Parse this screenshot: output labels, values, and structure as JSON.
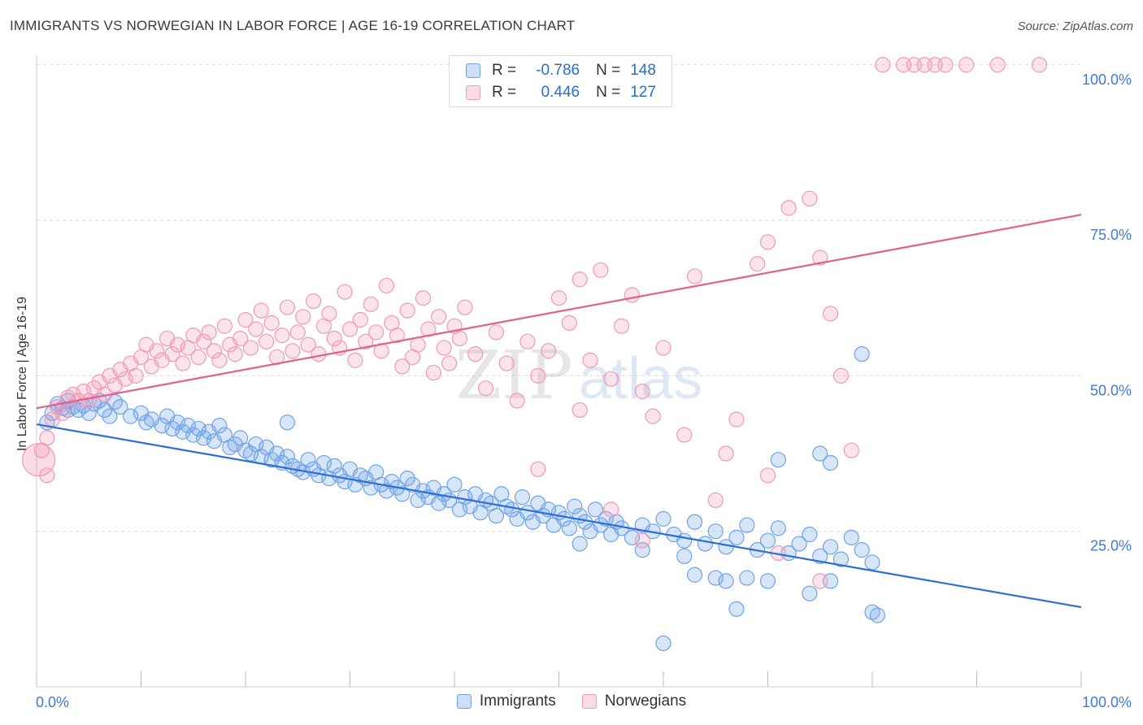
{
  "header": {
    "title": "IMMIGRANTS VS NORWEGIAN IN LABOR FORCE | AGE 16-19 CORRELATION CHART",
    "source": "Source: ZipAtlas.com"
  },
  "legend": {
    "rows": [
      {
        "r_label": "R =",
        "r_value": "-0.786",
        "n_label": "N =",
        "n_value": "148",
        "color": "#6fa3e8"
      },
      {
        "r_label": "R =",
        "r_value": "0.446",
        "n_label": "N =",
        "n_value": "127",
        "color": "#f199b6"
      }
    ]
  },
  "watermark": {
    "zip": "ZIP",
    "atlas": "atlas"
  },
  "chart_data": {
    "type": "scatter",
    "ylabel": "In Labor Force | Age 16-19",
    "xlim": [
      0,
      100
    ],
    "ylim": [
      0,
      100
    ],
    "x_tick_labels": [
      "0.0%",
      "100.0%"
    ],
    "y_tick_labels": [
      "25.0%",
      "50.0%",
      "75.0%",
      "100.0%"
    ],
    "y_ticks": [
      25,
      50,
      75,
      100
    ],
    "grid": true,
    "legend_position": "top-center",
    "series": [
      {
        "name": "Immigrants",
        "color": "#6fa3e8",
        "line_color": "#2b6fd4",
        "trend": {
          "x": [
            0,
            100
          ],
          "y": [
            42.2,
            12.8
          ]
        },
        "points": [
          [
            1.0,
            42.5
          ],
          [
            1.5,
            44.0
          ],
          [
            2.0,
            45.5
          ],
          [
            2.5,
            44.8
          ],
          [
            3.0,
            46.0
          ],
          [
            3.5,
            45.0
          ],
          [
            4.0,
            44.5
          ],
          [
            4.5,
            45.2
          ],
          [
            5.0,
            44.0
          ],
          [
            5.5,
            45.5
          ],
          [
            6.0,
            46.0
          ],
          [
            6.5,
            44.5
          ],
          [
            7.0,
            43.5
          ],
          [
            7.5,
            45.8
          ],
          [
            8.0,
            45.0
          ],
          [
            9.0,
            43.5
          ],
          [
            10.0,
            44.0
          ],
          [
            10.5,
            42.5
          ],
          [
            11.0,
            43.0
          ],
          [
            12.0,
            42.0
          ],
          [
            12.5,
            43.5
          ],
          [
            13.0,
            41.5
          ],
          [
            13.5,
            42.5
          ],
          [
            14.0,
            41.0
          ],
          [
            14.5,
            42.0
          ],
          [
            15.0,
            40.5
          ],
          [
            15.5,
            41.5
          ],
          [
            16.0,
            40.0
          ],
          [
            16.5,
            41.0
          ],
          [
            17.0,
            39.5
          ],
          [
            17.5,
            42.0
          ],
          [
            18.0,
            40.5
          ],
          [
            18.5,
            38.5
          ],
          [
            19.0,
            39.0
          ],
          [
            19.5,
            40.0
          ],
          [
            20.0,
            38.0
          ],
          [
            20.5,
            37.5
          ],
          [
            21.0,
            39.0
          ],
          [
            21.5,
            37.0
          ],
          [
            22.0,
            38.5
          ],
          [
            22.5,
            36.5
          ],
          [
            23.0,
            37.5
          ],
          [
            23.5,
            36.0
          ],
          [
            24.0,
            37.0
          ],
          [
            24.5,
            35.5
          ],
          [
            25.0,
            35.0
          ],
          [
            25.5,
            34.5
          ],
          [
            26.0,
            36.5
          ],
          [
            26.5,
            35.0
          ],
          [
            27.0,
            34.0
          ],
          [
            27.5,
            36.0
          ],
          [
            28.0,
            33.5
          ],
          [
            28.5,
            35.5
          ],
          [
            29.0,
            34.0
          ],
          [
            29.5,
            33.0
          ],
          [
            30.0,
            35.0
          ],
          [
            30.5,
            32.5
          ],
          [
            31.0,
            34.0
          ],
          [
            31.5,
            33.5
          ],
          [
            32.0,
            32.0
          ],
          [
            32.5,
            34.5
          ],
          [
            33.0,
            32.5
          ],
          [
            33.5,
            31.5
          ],
          [
            34.0,
            33.0
          ],
          [
            34.5,
            32.0
          ],
          [
            35.0,
            31.0
          ],
          [
            35.5,
            33.5
          ],
          [
            36.0,
            32.5
          ],
          [
            36.5,
            30.0
          ],
          [
            37.0,
            31.5
          ],
          [
            37.5,
            30.5
          ],
          [
            38.0,
            32.0
          ],
          [
            38.5,
            29.5
          ],
          [
            39.0,
            31.0
          ],
          [
            39.5,
            30.0
          ],
          [
            40.0,
            32.5
          ],
          [
            40.5,
            28.5
          ],
          [
            41.0,
            30.5
          ],
          [
            41.5,
            29.0
          ],
          [
            42.0,
            31.0
          ],
          [
            42.5,
            28.0
          ],
          [
            43.0,
            30.0
          ],
          [
            43.5,
            29.5
          ],
          [
            44.0,
            27.5
          ],
          [
            44.5,
            31.0
          ],
          [
            45.0,
            29.0
          ],
          [
            45.5,
            28.5
          ],
          [
            46.0,
            27.0
          ],
          [
            46.5,
            30.5
          ],
          [
            47.0,
            28.0
          ],
          [
            47.5,
            26.5
          ],
          [
            48.0,
            29.5
          ],
          [
            48.5,
            27.5
          ],
          [
            49.0,
            28.5
          ],
          [
            49.5,
            26.0
          ],
          [
            50.0,
            28.0
          ],
          [
            50.5,
            27.0
          ],
          [
            51.0,
            25.5
          ],
          [
            51.5,
            29.0
          ],
          [
            52.0,
            27.5
          ],
          [
            52.5,
            26.5
          ],
          [
            53.0,
            25.0
          ],
          [
            53.5,
            28.5
          ],
          [
            54.0,
            26.0
          ],
          [
            54.5,
            27.0
          ],
          [
            55.0,
            24.5
          ],
          [
            55.5,
            26.5
          ],
          [
            56.0,
            25.5
          ],
          [
            57.0,
            24.0
          ],
          [
            58.0,
            26.0
          ],
          [
            59.0,
            25.0
          ],
          [
            60.0,
            27.0
          ],
          [
            61.0,
            24.5
          ],
          [
            62.0,
            23.5
          ],
          [
            63.0,
            26.5
          ],
          [
            64.0,
            23.0
          ],
          [
            65.0,
            25.0
          ],
          [
            66.0,
            22.5
          ],
          [
            67.0,
            24.0
          ],
          [
            68.0,
            26.0
          ],
          [
            69.0,
            22.0
          ],
          [
            70.0,
            23.5
          ],
          [
            71.0,
            25.5
          ],
          [
            72.0,
            21.5
          ],
          [
            73.0,
            23.0
          ],
          [
            74.0,
            24.5
          ],
          [
            75.0,
            21.0
          ],
          [
            76.0,
            22.5
          ],
          [
            77.0,
            20.5
          ],
          [
            78.0,
            24.0
          ],
          [
            79.0,
            22.0
          ],
          [
            80.0,
            20.0
          ],
          [
            3.0,
            44.5
          ],
          [
            24.0,
            42.5
          ],
          [
            52.0,
            23.0
          ],
          [
            58.0,
            22.0
          ],
          [
            62.0,
            21.0
          ],
          [
            63.0,
            18.0
          ],
          [
            65.0,
            17.5
          ],
          [
            66.0,
            17.0
          ],
          [
            68.0,
            17.5
          ],
          [
            70.0,
            17.0
          ],
          [
            74.0,
            15.0
          ],
          [
            76.0,
            17.0
          ],
          [
            60.0,
            7.0
          ],
          [
            67.0,
            12.5
          ],
          [
            80.0,
            12.0
          ],
          [
            71.0,
            36.5
          ],
          [
            75.0,
            37.5
          ],
          [
            76.0,
            36.0
          ],
          [
            79.0,
            53.5
          ],
          [
            80.5,
            11.5
          ]
        ]
      },
      {
        "name": "Norwegians",
        "color": "#f199b6",
        "line_color": "#e0608e",
        "trend": {
          "x": [
            0,
            100
          ],
          "y": [
            44.8,
            75.9
          ]
        },
        "points": [
          [
            0.5,
            38.0
          ],
          [
            1.0,
            40.0
          ],
          [
            1.5,
            43.0
          ],
          [
            2.0,
            45.0
          ],
          [
            2.5,
            44.0
          ],
          [
            3.0,
            46.5
          ],
          [
            3.5,
            47.0
          ],
          [
            4.0,
            46.0
          ],
          [
            4.5,
            47.5
          ],
          [
            5.0,
            46.0
          ],
          [
            5.5,
            48.0
          ],
          [
            6.0,
            49.0
          ],
          [
            6.5,
            47.0
          ],
          [
            7.0,
            50.0
          ],
          [
            7.5,
            48.5
          ],
          [
            8.0,
            51.0
          ],
          [
            8.5,
            49.5
          ],
          [
            9.0,
            52.0
          ],
          [
            9.5,
            50.0
          ],
          [
            10.0,
            53.0
          ],
          [
            10.5,
            55.0
          ],
          [
            11.0,
            51.5
          ],
          [
            11.5,
            54.0
          ],
          [
            12.0,
            52.5
          ],
          [
            12.5,
            56.0
          ],
          [
            13.0,
            53.5
          ],
          [
            13.5,
            55.0
          ],
          [
            14.0,
            52.0
          ],
          [
            14.5,
            54.5
          ],
          [
            15.0,
            56.5
          ],
          [
            15.5,
            53.0
          ],
          [
            16.0,
            55.5
          ],
          [
            16.5,
            57.0
          ],
          [
            17.0,
            54.0
          ],
          [
            17.5,
            52.5
          ],
          [
            18.0,
            58.0
          ],
          [
            18.5,
            55.0
          ],
          [
            19.0,
            53.5
          ],
          [
            19.5,
            56.0
          ],
          [
            20.0,
            59.0
          ],
          [
            20.5,
            54.5
          ],
          [
            21.0,
            57.5
          ],
          [
            21.5,
            60.5
          ],
          [
            22.0,
            55.5
          ],
          [
            22.5,
            58.5
          ],
          [
            23.0,
            53.0
          ],
          [
            23.5,
            56.5
          ],
          [
            24.0,
            61.0
          ],
          [
            24.5,
            54.0
          ],
          [
            25.0,
            57.0
          ],
          [
            25.5,
            59.5
          ],
          [
            26.0,
            55.0
          ],
          [
            26.5,
            62.0
          ],
          [
            27.0,
            53.5
          ],
          [
            27.5,
            58.0
          ],
          [
            28.0,
            60.0
          ],
          [
            28.5,
            56.0
          ],
          [
            29.0,
            54.5
          ],
          [
            29.5,
            63.5
          ],
          [
            30.0,
            57.5
          ],
          [
            30.5,
            52.5
          ],
          [
            31.0,
            59.0
          ],
          [
            31.5,
            55.5
          ],
          [
            32.0,
            61.5
          ],
          [
            32.5,
            57.0
          ],
          [
            33.0,
            54.0
          ],
          [
            33.5,
            64.5
          ],
          [
            34.0,
            58.5
          ],
          [
            34.5,
            56.5
          ],
          [
            35.0,
            51.5
          ],
          [
            35.5,
            60.5
          ],
          [
            36.0,
            53.0
          ],
          [
            36.5,
            55.0
          ],
          [
            37.0,
            62.5
          ],
          [
            37.5,
            57.5
          ],
          [
            38.0,
            50.5
          ],
          [
            38.5,
            59.5
          ],
          [
            39.0,
            54.5
          ],
          [
            39.5,
            52.0
          ],
          [
            40.0,
            58.0
          ],
          [
            40.5,
            56.0
          ],
          [
            41.0,
            61.0
          ],
          [
            42.0,
            53.5
          ],
          [
            43.0,
            48.0
          ],
          [
            44.0,
            57.0
          ],
          [
            45.0,
            52.0
          ],
          [
            46.0,
            46.0
          ],
          [
            47.0,
            55.5
          ],
          [
            48.0,
            50.0
          ],
          [
            49.0,
            54.0
          ],
          [
            50.0,
            62.5
          ],
          [
            51.0,
            58.5
          ],
          [
            52.0,
            65.5
          ],
          [
            53.0,
            52.5
          ],
          [
            54.0,
            67.0
          ],
          [
            55.0,
            49.5
          ],
          [
            56.0,
            58.0
          ],
          [
            57.0,
            63.0
          ],
          [
            58.0,
            47.5
          ],
          [
            59.0,
            43.5
          ],
          [
            60.0,
            54.5
          ],
          [
            62.0,
            40.5
          ],
          [
            63.0,
            66.0
          ],
          [
            65.0,
            30.0
          ],
          [
            66.0,
            37.5
          ],
          [
            67.0,
            43.0
          ],
          [
            69.0,
            68.0
          ],
          [
            70.0,
            71.5
          ],
          [
            72.0,
            77.0
          ],
          [
            74.0,
            78.5
          ],
          [
            75.0,
            69.0
          ],
          [
            76.0,
            60.0
          ],
          [
            77.0,
            50.0
          ],
          [
            78.0,
            38.0
          ],
          [
            81.0,
            100.0
          ],
          [
            83.0,
            100.0
          ],
          [
            84.0,
            100.0
          ],
          [
            85.0,
            100.0
          ],
          [
            86.0,
            100.0
          ],
          [
            87.0,
            100.0
          ],
          [
            89.0,
            100.0
          ],
          [
            92.0,
            100.0
          ],
          [
            96.0,
            100.0
          ],
          [
            1.0,
            34.0
          ],
          [
            48.0,
            35.0
          ],
          [
            52.0,
            44.5
          ],
          [
            55.0,
            28.5
          ],
          [
            58.0,
            23.5
          ],
          [
            70.0,
            34.0
          ],
          [
            71.0,
            21.5
          ],
          [
            75.0,
            17.0
          ]
        ]
      }
    ]
  }
}
